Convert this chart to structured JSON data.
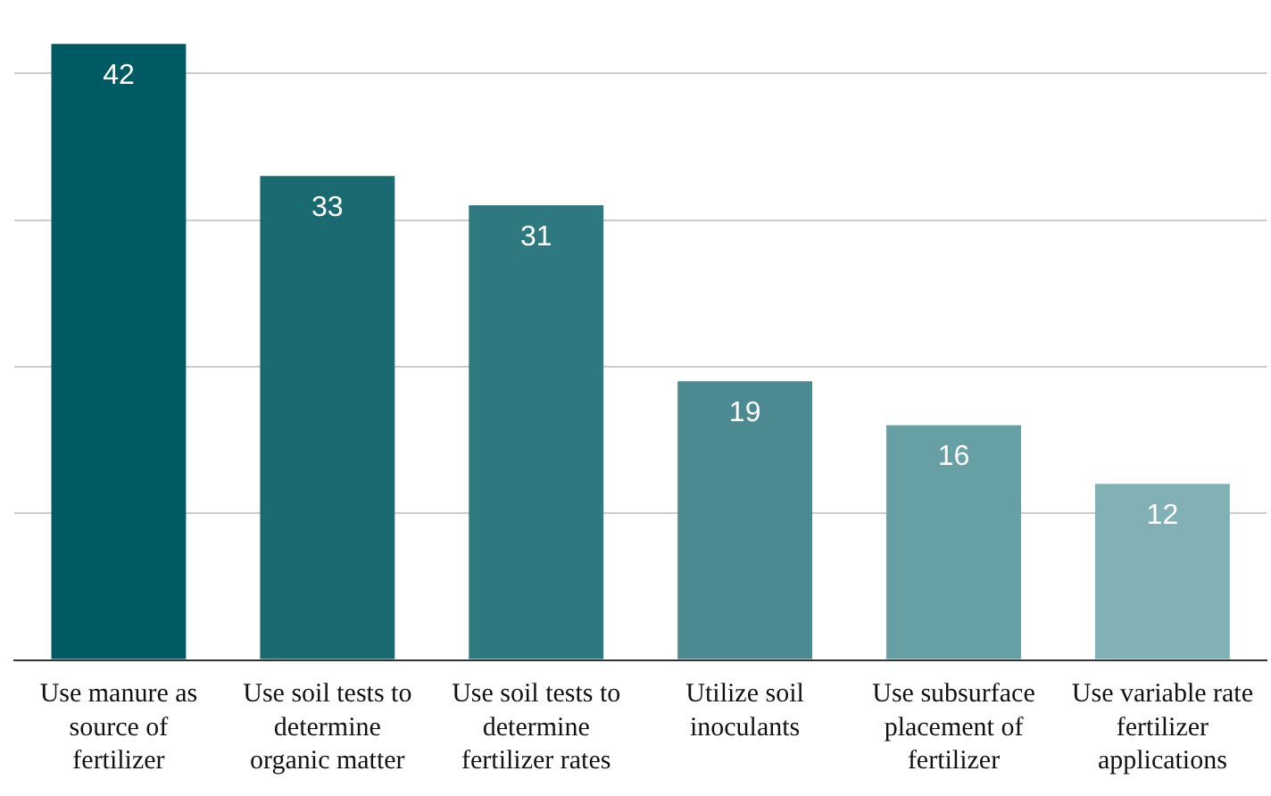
{
  "chart_data": {
    "type": "bar",
    "categories": [
      "Use manure as source of fertilizer",
      "Use soil tests to determine organic matter",
      "Use soil tests to determine fertilizer rates",
      "Utilize soil inoculants",
      "Use subsurface placement of fertilizer",
      "Use variable rate fertilizer applications"
    ],
    "values": [
      42,
      33,
      31,
      19,
      16,
      12
    ],
    "colors": [
      "#005a63",
      "#1a6a72",
      "#2e7980",
      "#4a8a90",
      "#66a0a5",
      "#82b1b5"
    ],
    "yticks": [
      {
        "value": 0,
        "label": null
      },
      {
        "value": 10,
        "label": null
      },
      {
        "value": 20,
        "label": null
      },
      {
        "value": 30,
        "label": null
      },
      {
        "value": 40,
        "label": null
      }
    ],
    "tick_labels": "x",
    "grid": "y",
    "data_labels": true
  }
}
